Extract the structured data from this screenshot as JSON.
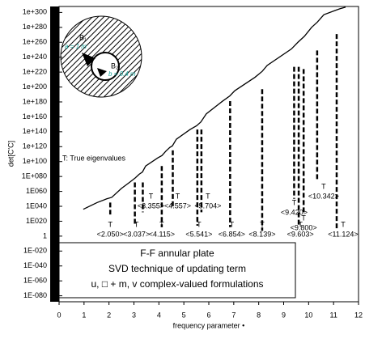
{
  "chart_data": {
    "type": "line",
    "log_y": true,
    "ylabel": "det[C'C]",
    "xlabel": "frequency parameter •",
    "xlim": [
      0,
      12
    ],
    "xticks": [
      0,
      1,
      2,
      3,
      4,
      5,
      6,
      7,
      8,
      9,
      10,
      11,
      12
    ],
    "ylim": [
      1e-88,
      1e+308
    ],
    "yticks": [
      {
        "value": 1e+300,
        "label": "1e+300"
      },
      {
        "value": 1e+280,
        "label": "1e+280"
      },
      {
        "value": 1e+260,
        "label": "1e+260"
      },
      {
        "value": 1e+240,
        "label": "1e+240"
      },
      {
        "value": 1e+220,
        "label": "1e+220"
      },
      {
        "value": 1e+200,
        "label": "1e+200"
      },
      {
        "value": 1e+180,
        "label": "1e+180"
      },
      {
        "value": 1e+160,
        "label": "1e+160"
      },
      {
        "value": 1e+140,
        "label": "1e+140"
      },
      {
        "value": 1e+120,
        "label": "1e+120"
      },
      {
        "value": 1e+100,
        "label": "1e+100"
      },
      {
        "value": 1e+80,
        "label": "1E+080"
      },
      {
        "value": 1e+60,
        "label": "1E060"
      },
      {
        "value": 1e+40,
        "label": "1E040"
      },
      {
        "value": 1e+20,
        "label": "1E020"
      },
      1,
      {
        "value": 1e-20,
        "label": "1E-020"
      },
      {
        "value": 1e-40,
        "label": "1E-040"
      },
      {
        "value": 1e-60,
        "label": "1E-060"
      },
      {
        "value": 1e-80,
        "label": "1E-080"
      }
    ],
    "series": [
      {
        "color": "#000000",
        "x": [
          0.97,
          1.52,
          1.91,
          2.11,
          2.5,
          2.82,
          3.05,
          3.21,
          3.34,
          3.47,
          3.96,
          4.12,
          4.28,
          4.44,
          4.54,
          4.7,
          5.25,
          5.51,
          5.68,
          5.9,
          6.55,
          6.84,
          7.04,
          7.85,
          8.14,
          8.34,
          9.31,
          9.57,
          9.83,
          10.12,
          10.35,
          10.61,
          11.09,
          11.26,
          11.48
        ],
        "values": [
          1e+36,
          1e+45,
          1e+50,
          1e+52,
          1e+64,
          1e+72,
          1e+78,
          1e+83,
          1e+86,
          1e+94,
          1e+105,
          1e+108,
          1e+114,
          1e+119,
          1e+121,
          1e+130,
          1e+143,
          1e+148,
          1e+153,
          1e+164,
          1e+181,
          1e+188,
          1e+195,
          1e+213,
          1e+221,
          1e+229,
          1e+251,
          1e+260,
          1e+268,
          1e+280,
          1e+287,
          1e+297,
          1e+303,
          1e+305,
          1e+307
        ]
      }
    ],
    "dips": {
      "x": [
        2.05,
        3.037,
        3.355,
        4.115,
        4.557,
        5.541,
        5.704,
        6.854,
        8.139,
        9.42,
        9.603,
        9.8,
        10.342,
        11.124
      ],
      "top": [
        1e+45,
        1e+72,
        1e+72,
        1e+94,
        1e+115,
        1e+143,
        1e+143,
        1e+181,
        1e+197,
        1e+227,
        1e+227,
        1e+224,
        1e+249,
        1e+271
      ],
      "bottom": [
        1e+29,
        1000000000000000.0,
        1e+32,
        1000000000000.0,
        1e+39,
        100000000000000.0,
        1e+32,
        1000000000000.0,
        10000000.0,
        1e+50,
        100000000000000.0,
        1e+32,
        1e+75,
        10000000000.0
      ]
    },
    "marker": "T",
    "eigen_labels": [
      "<2.050>",
      "<3.037>",
      "<3.355>",
      "<4.115>",
      "<4.557>",
      "<5.541>",
      "<5.704>",
      "<6.854>",
      "<8.139>",
      "<9.420>",
      "<9.603>",
      "<9.800>",
      "<10.342>",
      "<11.124>"
    ],
    "legend_note": "T: True eigenvalues",
    "box_lines": [
      "F-F annular plate",
      "SVD technique of updating term",
      "u, □ + m, v complex-valued formulations"
    ],
    "inset": {
      "b1": "B₁",
      "b2": "B₂",
      "a": "a = 1 m",
      "b": "b = 0.4 m"
    }
  }
}
